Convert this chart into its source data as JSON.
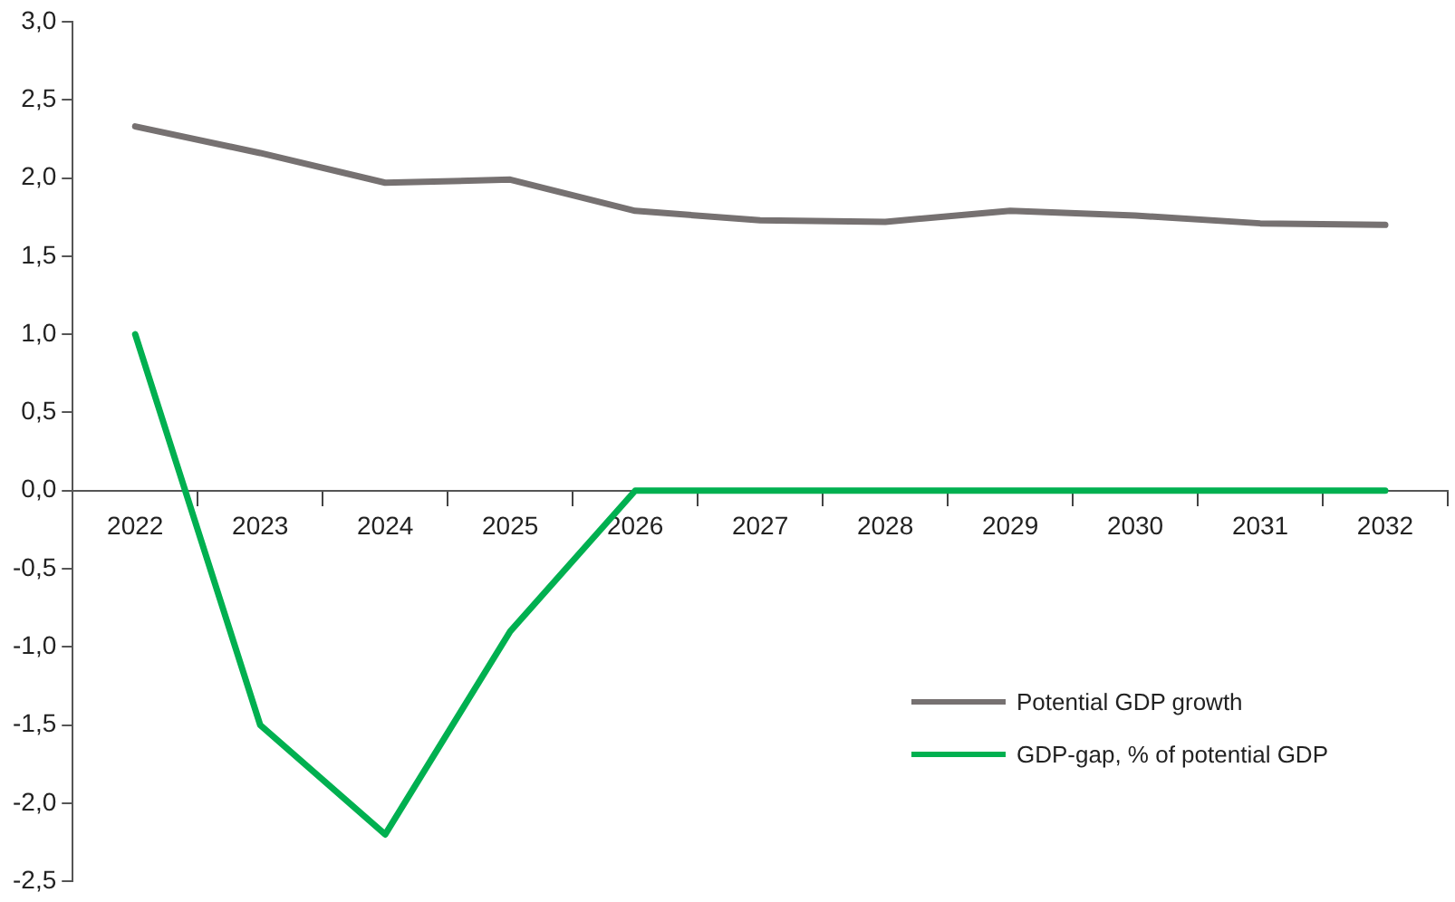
{
  "chart_data": {
    "type": "line",
    "categories": [
      "2022",
      "2023",
      "2024",
      "2025",
      "2026",
      "2027",
      "2028",
      "2029",
      "2030",
      "2031",
      "2032"
    ],
    "series": [
      {
        "name": "Potential GDP growth",
        "color": "#767171",
        "values": [
          2.33,
          2.16,
          1.97,
          1.99,
          1.79,
          1.73,
          1.72,
          1.79,
          1.76,
          1.71,
          1.7
        ]
      },
      {
        "name": "GDP-gap, % of potential GDP",
        "color": "#00b050",
        "values": [
          1.0,
          -1.5,
          -2.2,
          -0.9,
          0,
          0,
          0,
          0,
          0,
          0,
          0
        ]
      }
    ],
    "ylim": [
      -2.5,
      3.0
    ],
    "yticks": [
      {
        "value": -2.5,
        "label": "-2,5"
      },
      {
        "value": -2,
        "label": "-2,0"
      },
      {
        "value": -1.5,
        "label": "-1,5"
      },
      {
        "value": -1,
        "label": "-1,0"
      },
      {
        "value": -0.5,
        "label": "-0,5"
      },
      {
        "value": 0,
        "label": "0,0"
      },
      {
        "value": 0.5,
        "label": "0,5"
      },
      {
        "value": 1,
        "label": "1,0"
      },
      {
        "value": 1.5,
        "label": "1,5"
      },
      {
        "value": 2,
        "label": "2,0"
      },
      {
        "value": 2.5,
        "label": "2,5"
      },
      {
        "value": 3,
        "label": "3,0"
      }
    ],
    "grid": false,
    "legend": "bottom right",
    "marker": "none",
    "line_style": "solid"
  }
}
